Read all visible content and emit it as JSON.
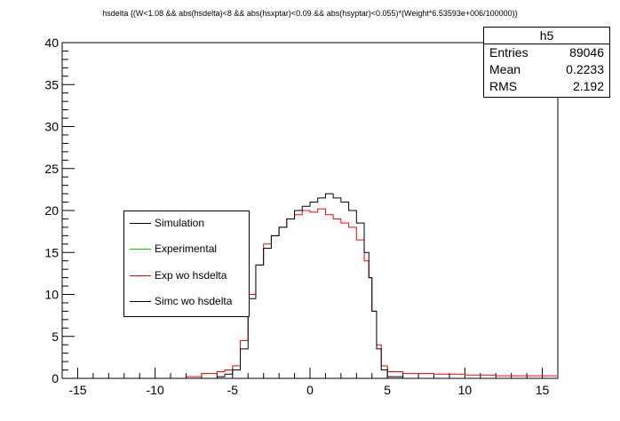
{
  "chart_data": {
    "type": "line",
    "title": "hsdelta {(W<1.08 && abs(hsdelta)<8 && abs(hsxptar)<0.09 && abs(hsyptar)<0.055)*(Weight*6.53593e+006/100000)}",
    "xlim": [
      -16,
      16
    ],
    "ylim": [
      0,
      40
    ],
    "x_ticks": [
      -15,
      -10,
      -5,
      0,
      5,
      10,
      15
    ],
    "y_ticks": [
      0,
      5,
      10,
      15,
      20,
      25,
      30,
      35,
      40
    ],
    "grid": false,
    "legend_position": "middle-left",
    "series": [
      {
        "name": "Simulation",
        "color": "#000000",
        "x": [],
        "y": []
      },
      {
        "name": "Experimental",
        "color": "#00cc00",
        "x": [],
        "y": []
      },
      {
        "name": "Exp wo hsdelta",
        "color": "#ff0000",
        "x": [
          -8,
          -7,
          -6,
          -5.5,
          -5,
          -4.5,
          -4,
          -3.5,
          -3,
          -2.5,
          -2,
          -1.5,
          -1,
          -0.5,
          0,
          0.5,
          1,
          1.5,
          2,
          2.5,
          3,
          3.5,
          3.8,
          4,
          4.3,
          4.6,
          5,
          6,
          8,
          10,
          12,
          14,
          16
        ],
        "y": [
          0.2,
          0.6,
          0.8,
          1.0,
          1.5,
          4.5,
          10.0,
          13.5,
          16.0,
          17.0,
          18.0,
          19.0,
          19.5,
          20.0,
          19.8,
          20.2,
          19.5,
          19.0,
          18.5,
          18.0,
          16.5,
          14.0,
          12.0,
          8.0,
          4.0,
          1.5,
          0.8,
          0.6,
          0.5,
          0.4,
          0.3,
          0.3,
          0.2
        ]
      },
      {
        "name": "Simc wo hsdelta",
        "color": "#000000",
        "x": [
          -7,
          -6,
          -5.5,
          -5,
          -4.5,
          -4,
          -3.5,
          -3,
          -2.5,
          -2,
          -1.5,
          -1,
          -0.5,
          0,
          0.5,
          1,
          1.5,
          2,
          2.5,
          3,
          3.5,
          3.8,
          4,
          4.3,
          4.6,
          5,
          6
        ],
        "y": [
          0.0,
          0.2,
          0.5,
          1.0,
          3.5,
          9.5,
          13.5,
          15.5,
          17.0,
          18.0,
          19.0,
          20.0,
          20.5,
          21.0,
          21.5,
          22.0,
          21.5,
          21.0,
          20.0,
          18.5,
          15.0,
          12.0,
          8.0,
          3.5,
          1.0,
          0.2,
          0.0
        ]
      }
    ]
  },
  "stats": {
    "name": "h5",
    "rows": [
      {
        "label": "Entries",
        "value": "89046"
      },
      {
        "label": "Mean",
        "value": "0.2233"
      },
      {
        "label": "RMS",
        "value": "2.192"
      }
    ]
  }
}
